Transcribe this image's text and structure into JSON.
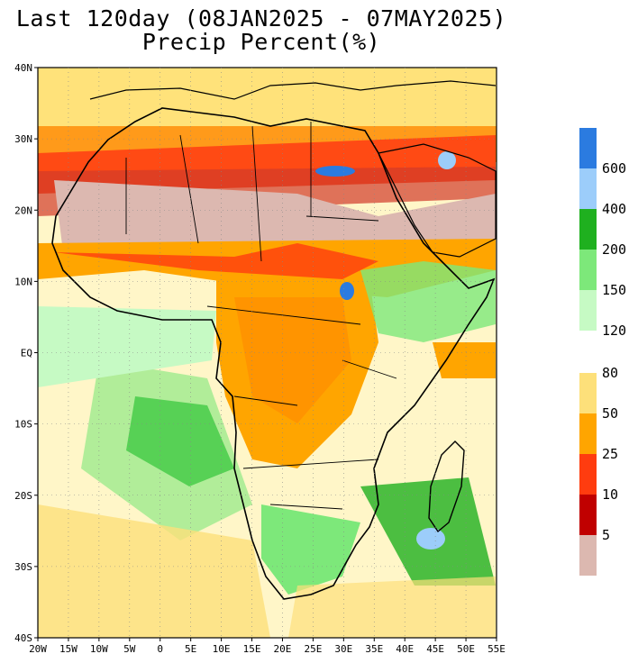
{
  "title_line1": "Last 120day (08JAN2025 - 07MAY2025)",
  "title_line2": "Precip Percent(%)",
  "lat_labels": [
    "40N",
    "30N",
    "20N",
    "10N",
    "EQ",
    "10S",
    "20S",
    "30S",
    "40S"
  ],
  "lon_labels": [
    "20W",
    "15W",
    "10W",
    "5W",
    "0",
    "5E",
    "10E",
    "15E",
    "20E",
    "25E",
    "30E",
    "35E",
    "40E",
    "45E",
    "50E",
    "55E"
  ],
  "legend_upper": {
    "labels": [
      "600",
      "400",
      "200",
      "150",
      "120"
    ],
    "colors": [
      "#2b7be0",
      "#9ccdfa",
      "#1fb01f",
      "#7de87a",
      "#c6fac4"
    ]
  },
  "legend_lower": {
    "labels": [
      "80",
      "50",
      "25",
      "10",
      "5"
    ],
    "colors": [
      "#fde07a",
      "#ffa500",
      "#ff3c0f",
      "#c00000",
      "#dcb8b0"
    ]
  },
  "colors": {
    "near_normal_white": "#ffffff",
    "country_border": "#000000",
    "admin_border": "#9a9a9a"
  }
}
